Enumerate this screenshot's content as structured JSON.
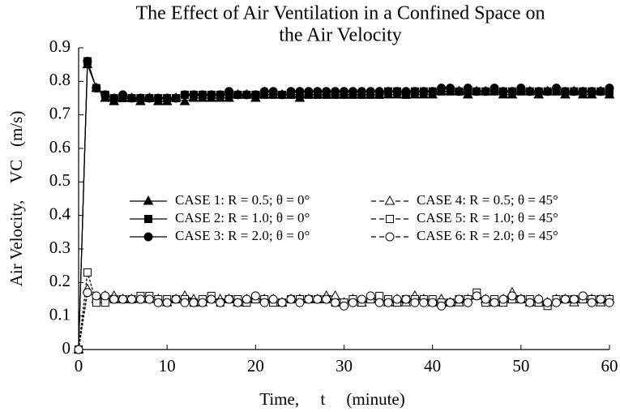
{
  "chart_data": {
    "type": "line",
    "title": [
      "The Effect of Air Ventilation in a Confined Space on",
      "the Air Velocity"
    ],
    "x_label": "Time,     t     (minute)",
    "y_label": "Air Velocity,    VC   (m/s)",
    "x": [
      0,
      1,
      2,
      3,
      4,
      5,
      6,
      7,
      8,
      9,
      10,
      11,
      12,
      13,
      14,
      15,
      16,
      17,
      18,
      19,
      20,
      21,
      22,
      23,
      24,
      25,
      26,
      27,
      28,
      29,
      30,
      31,
      32,
      33,
      34,
      35,
      36,
      37,
      38,
      39,
      40,
      41,
      42,
      43,
      44,
      45,
      46,
      47,
      48,
      49,
      50,
      51,
      52,
      53,
      54,
      55,
      56,
      57,
      58,
      59,
      60
    ],
    "xlim": [
      0,
      60
    ],
    "xticks": [
      0,
      10,
      20,
      30,
      40,
      50,
      60
    ],
    "ylim": [
      0,
      0.9
    ],
    "yticks": [
      0,
      0.1,
      0.2,
      0.3,
      0.4,
      0.5,
      0.6,
      0.7,
      0.8,
      0.9
    ],
    "grid": false,
    "series": [
      {
        "name": "CASE 1: R = 0.5; θ = 0°",
        "color": "#000000",
        "marker": "triangle",
        "filled": true,
        "dashed": false,
        "values": [
          0,
          0.85,
          0.78,
          0.75,
          0.74,
          0.75,
          0.75,
          0.74,
          0.75,
          0.74,
          0.74,
          0.75,
          0.74,
          0.75,
          0.75,
          0.75,
          0.75,
          0.75,
          0.76,
          0.76,
          0.75,
          0.76,
          0.76,
          0.76,
          0.76,
          0.75,
          0.76,
          0.76,
          0.76,
          0.76,
          0.76,
          0.76,
          0.76,
          0.76,
          0.76,
          0.76,
          0.76,
          0.76,
          0.76,
          0.76,
          0.76,
          0.77,
          0.77,
          0.77,
          0.76,
          0.77,
          0.77,
          0.77,
          0.76,
          0.76,
          0.77,
          0.77,
          0.76,
          0.77,
          0.77,
          0.76,
          0.77,
          0.76,
          0.76,
          0.77,
          0.76
        ]
      },
      {
        "name": "CASE 2: R = 1.0; θ = 0°",
        "color": "#000000",
        "marker": "square",
        "filled": true,
        "dashed": false,
        "values": [
          0,
          0.86,
          0.78,
          0.76,
          0.75,
          0.75,
          0.75,
          0.75,
          0.75,
          0.75,
          0.75,
          0.75,
          0.76,
          0.76,
          0.76,
          0.76,
          0.76,
          0.76,
          0.76,
          0.76,
          0.76,
          0.76,
          0.76,
          0.76,
          0.76,
          0.76,
          0.76,
          0.76,
          0.76,
          0.76,
          0.76,
          0.76,
          0.76,
          0.76,
          0.76,
          0.77,
          0.77,
          0.76,
          0.77,
          0.77,
          0.77,
          0.77,
          0.77,
          0.77,
          0.77,
          0.77,
          0.77,
          0.77,
          0.77,
          0.77,
          0.77,
          0.77,
          0.77,
          0.77,
          0.77,
          0.77,
          0.77,
          0.77,
          0.77,
          0.77,
          0.77
        ]
      },
      {
        "name": "CASE 3: R = 2.0; θ = 0°",
        "color": "#000000",
        "marker": "circle",
        "filled": true,
        "dashed": false,
        "values": [
          0,
          0.86,
          0.78,
          0.76,
          0.75,
          0.76,
          0.75,
          0.75,
          0.75,
          0.75,
          0.75,
          0.75,
          0.76,
          0.76,
          0.76,
          0.76,
          0.76,
          0.77,
          0.76,
          0.76,
          0.76,
          0.77,
          0.77,
          0.76,
          0.77,
          0.77,
          0.77,
          0.77,
          0.77,
          0.77,
          0.77,
          0.77,
          0.77,
          0.77,
          0.77,
          0.77,
          0.77,
          0.77,
          0.77,
          0.77,
          0.77,
          0.78,
          0.78,
          0.77,
          0.78,
          0.77,
          0.77,
          0.78,
          0.77,
          0.77,
          0.78,
          0.77,
          0.77,
          0.77,
          0.78,
          0.77,
          0.77,
          0.77,
          0.77,
          0.77,
          0.78
        ]
      },
      {
        "name": "CASE 4: R = 0.5; θ = 45°",
        "color": "#000000",
        "marker": "triangle",
        "filled": false,
        "dashed": true,
        "values": [
          0,
          0.18,
          0.15,
          0.16,
          0.16,
          0.15,
          0.15,
          0.15,
          0.15,
          0.15,
          0.14,
          0.15,
          0.16,
          0.15,
          0.14,
          0.15,
          0.15,
          0.15,
          0.14,
          0.15,
          0.15,
          0.15,
          0.15,
          0.14,
          0.15,
          0.15,
          0.15,
          0.15,
          0.16,
          0.16,
          0.14,
          0.15,
          0.14,
          0.15,
          0.15,
          0.14,
          0.15,
          0.14,
          0.16,
          0.15,
          0.14,
          0.15,
          0.14,
          0.14,
          0.15,
          0.16,
          0.15,
          0.14,
          0.15,
          0.17,
          0.15,
          0.14,
          0.15,
          0.14,
          0.15,
          0.15,
          0.14,
          0.15,
          0.15,
          0.14,
          0.15
        ]
      },
      {
        "name": "CASE 5: R = 1.0; θ = 45°",
        "color": "#000000",
        "marker": "square",
        "filled": false,
        "dashed": true,
        "values": [
          0,
          0.23,
          0.14,
          0.14,
          0.15,
          0.15,
          0.15,
          0.16,
          0.16,
          0.15,
          0.15,
          0.15,
          0.15,
          0.14,
          0.15,
          0.16,
          0.14,
          0.15,
          0.15,
          0.14,
          0.15,
          0.15,
          0.14,
          0.14,
          0.15,
          0.15,
          0.15,
          0.15,
          0.15,
          0.14,
          0.14,
          0.15,
          0.14,
          0.15,
          0.16,
          0.15,
          0.14,
          0.15,
          0.15,
          0.15,
          0.15,
          0.14,
          0.14,
          0.15,
          0.15,
          0.17,
          0.14,
          0.15,
          0.14,
          0.15,
          0.15,
          0.15,
          0.14,
          0.13,
          0.15,
          0.15,
          0.15,
          0.15,
          0.15,
          0.15,
          0.15
        ]
      },
      {
        "name": "CASE 6: R = 2.0; θ = 45°",
        "color": "#000000",
        "marker": "circle",
        "filled": false,
        "dashed": true,
        "values": [
          0,
          0.17,
          0.16,
          0.16,
          0.15,
          0.15,
          0.15,
          0.15,
          0.15,
          0.14,
          0.14,
          0.15,
          0.14,
          0.14,
          0.14,
          0.15,
          0.14,
          0.15,
          0.14,
          0.15,
          0.16,
          0.14,
          0.15,
          0.14,
          0.15,
          0.14,
          0.15,
          0.15,
          0.15,
          0.14,
          0.13,
          0.14,
          0.15,
          0.16,
          0.14,
          0.14,
          0.15,
          0.15,
          0.14,
          0.14,
          0.14,
          0.13,
          0.14,
          0.15,
          0.14,
          0.16,
          0.15,
          0.14,
          0.15,
          0.16,
          0.15,
          0.14,
          0.15,
          0.14,
          0.14,
          0.15,
          0.15,
          0.16,
          0.14,
          0.15,
          0.14
        ]
      }
    ]
  }
}
